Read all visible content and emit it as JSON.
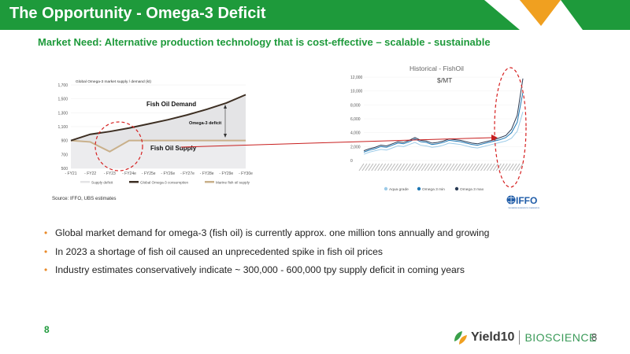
{
  "header": {
    "title": "The Opportunity - Omega-3 Deficit",
    "subtitle": "Market Need:  Alternative production technology that is cost-effective – scalable - sustainable",
    "accent_green": "#1e9a3b",
    "accent_orange": "#f0a020"
  },
  "left_chart": {
    "title": "Global Omega-3 market supply / demand (kt)",
    "annotations": {
      "demand": "Fish Oil Demand",
      "deficit": "Omega-3 deficit",
      "supply": "Fish Oil Supply"
    },
    "legend": [
      "Supply deficit",
      "Global Omega-3 consumption",
      "Marine fish oil supply"
    ],
    "source": "Source: IFFO, UBS estimates"
  },
  "right_chart": {
    "title": "Historical - FishOil",
    "unit": "$/MT",
    "legend": [
      "Aqua grade",
      "Omega 3 min",
      "Omega 3 max"
    ],
    "logo": "IFFO",
    "logo_tagline": "THE MARINE INGREDIENTS ORGANISATION"
  },
  "bullets": [
    "Global market demand for omega-3 (fish oil) is currently approx. one million tons annually and growing",
    "In 2023 a shortage of fish oil caused an unprecedented spike in fish oil prices",
    "Industry estimates conservatively indicate ~ 300,000 - 600,000 tpy supply deficit in coming years"
  ],
  "footer": {
    "page_number_left": "8",
    "page_number_right": "8",
    "brand_name": "Yield10",
    "brand_suffix": "BIOSCIENCE"
  },
  "chart_data": [
    {
      "type": "area",
      "title": "Global Omega-3 market supply / demand (kt)",
      "categories": [
        "FY21",
        "FY22",
        "FY23",
        "FY24e",
        "FY25e",
        "FY26e",
        "FY27e",
        "FY28e",
        "FY29e",
        "FY30e"
      ],
      "ylim": [
        500,
        1700
      ],
      "yticks": [
        "1,700",
        "1,500",
        "1,300",
        "1,100",
        "900",
        "700",
        "500"
      ],
      "series": [
        {
          "name": "Global Omega-3 consumption",
          "values": [
            900,
            990,
            1030,
            1080,
            1140,
            1200,
            1270,
            1350,
            1440,
            1560
          ]
        },
        {
          "name": "Marine fish oil supply",
          "values": [
            900,
            880,
            740,
            900,
            900,
            900,
            900,
            900,
            900,
            900
          ]
        }
      ],
      "legend_position": "bottom",
      "colors": {
        "consumption": "#3d2f23",
        "supply": "#c9b08a",
        "deficit": "#e4e4e6"
      }
    },
    {
      "type": "line",
      "title": "Historical - FishOil",
      "ylabel": "$/MT",
      "ylim": [
        0,
        12000
      ],
      "yticks": [
        "12,000",
        "10,000",
        "8,000",
        "6,000",
        "4,000",
        "2,000",
        "0"
      ],
      "series": [
        {
          "name": "Aqua grade",
          "values": [
            900,
            1200,
            1400,
            1600,
            1500,
            1800,
            2100,
            2000,
            2300,
            2600,
            2200,
            2100,
            1900,
            2000,
            2200,
            2500,
            2400,
            2300,
            2100,
            1900,
            1800,
            2000,
            2200,
            2400,
            2600,
            2800,
            3200,
            4200,
            7000
          ]
        },
        {
          "name": "Omega 3 min",
          "values": [
            1200,
            1500,
            1700,
            2000,
            1900,
            2200,
            2500,
            2400,
            2700,
            3100,
            2700,
            2600,
            2300,
            2400,
            2600,
            2900,
            2800,
            2700,
            2500,
            2300,
            2200,
            2400,
            2600,
            2800,
            3000,
            3300,
            4000,
            5500,
            9800
          ]
        },
        {
          "name": "Omega 3 max",
          "values": [
            1400,
            1700,
            1900,
            2200,
            2100,
            2400,
            2700,
            2600,
            2900,
            3300,
            2900,
            2800,
            2500,
            2600,
            2800,
            3100,
            3000,
            2900,
            2700,
            2500,
            2400,
            2600,
            2800,
            3000,
            3300,
            3600,
            4500,
            6500,
            11800
          ]
        }
      ],
      "legend_position": "bottom",
      "colors": {
        "aqua": "#9ccbe8",
        "omin": "#1f78b4",
        "omax": "#2a3b55"
      }
    }
  ]
}
